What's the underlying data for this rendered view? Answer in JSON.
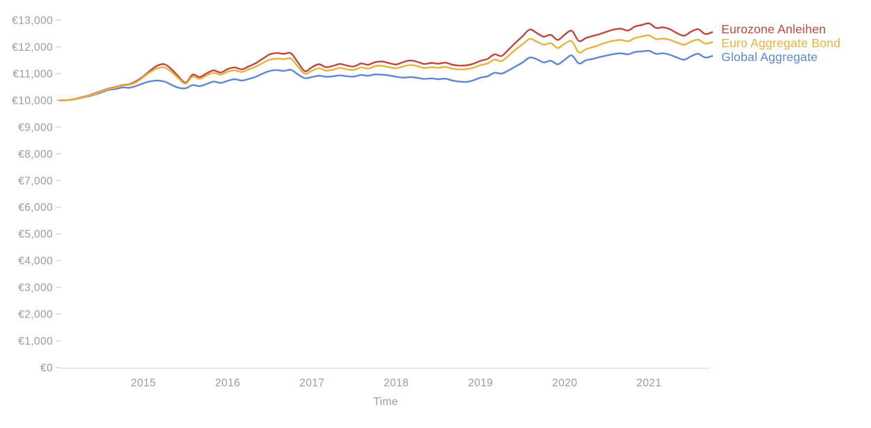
{
  "chart": {
    "background": "#ffffff",
    "axis_text_color": "#9b9b9b",
    "axis_line_color": "#e3e3e3",
    "tick_mark_color": "#d6d6d6"
  },
  "chart_data": {
    "type": "line",
    "title": "",
    "xlabel": "Time",
    "ylabel": "",
    "currency_prefix": "€",
    "ylim": [
      0,
      13000
    ],
    "y_tick_step": 1000,
    "y_tick_labels": [
      "€0",
      "€1,000",
      "€2,000",
      "€3,000",
      "€4,000",
      "€5,000",
      "€6,000",
      "€7,000",
      "€8,000",
      "€9,000",
      "€10,000",
      "€11,000",
      "€12,000",
      "€13,000"
    ],
    "x_tick_labels": [
      "2015",
      "2016",
      "2017",
      "2018",
      "2019",
      "2020",
      "2021"
    ],
    "x_range_months": [
      "2014-01",
      "2021-10"
    ],
    "grid": false,
    "legend_position": "right-of-line-ends",
    "series": [
      {
        "name": "Eurozone Anleihen",
        "color": "#c0463c",
        "values": [
          10000,
          10000,
          10040,
          10100,
          10170,
          10250,
          10340,
          10440,
          10490,
          10570,
          10600,
          10720,
          10900,
          11120,
          11300,
          11350,
          11160,
          10890,
          10660,
          10960,
          10870,
          11010,
          11120,
          11040,
          11170,
          11230,
          11160,
          11270,
          11390,
          11560,
          11720,
          11770,
          11740,
          11760,
          11420,
          11090,
          11240,
          11350,
          11240,
          11290,
          11360,
          11300,
          11270,
          11380,
          11330,
          11430,
          11450,
          11390,
          11340,
          11430,
          11490,
          11440,
          11360,
          11400,
          11370,
          11410,
          11330,
          11300,
          11310,
          11370,
          11480,
          11550,
          11720,
          11660,
          11900,
          12160,
          12400,
          12650,
          12520,
          12380,
          12450,
          12260,
          12460,
          12600,
          12220,
          12330,
          12410,
          12480,
          12570,
          12650,
          12680,
          12610,
          12760,
          12820,
          12880,
          12710,
          12730,
          12660,
          12510,
          12420,
          12570,
          12660,
          12480,
          12550
        ]
      },
      {
        "name": "Euro Aggregate Bond",
        "color": "#e8b33d",
        "values": [
          10000,
          10000,
          10040,
          10090,
          10160,
          10230,
          10320,
          10420,
          10470,
          10550,
          10580,
          10680,
          10870,
          11060,
          11200,
          11230,
          11060,
          10820,
          10620,
          10890,
          10800,
          10930,
          11030,
          10960,
          11070,
          11120,
          11060,
          11160,
          11260,
          11400,
          11520,
          11560,
          11540,
          11560,
          11260,
          10990,
          11110,
          11200,
          11110,
          11150,
          11210,
          11160,
          11140,
          11230,
          11190,
          11280,
          11290,
          11240,
          11200,
          11270,
          11320,
          11280,
          11210,
          11240,
          11220,
          11250,
          11180,
          11160,
          11170,
          11220,
          11320,
          11380,
          11520,
          11470,
          11670,
          11900,
          12100,
          12300,
          12200,
          12080,
          12140,
          11960,
          12120,
          12210,
          11790,
          11910,
          11990,
          12080,
          12170,
          12230,
          12260,
          12210,
          12330,
          12390,
          12430,
          12290,
          12310,
          12260,
          12160,
          12080,
          12200,
          12270,
          12120,
          12180
        ]
      },
      {
        "name": "Global Aggregate",
        "color": "#5b87d5",
        "values": [
          10000,
          10000,
          10030,
          10080,
          10140,
          10210,
          10290,
          10390,
          10420,
          10480,
          10470,
          10540,
          10640,
          10710,
          10740,
          10700,
          10580,
          10470,
          10450,
          10570,
          10530,
          10610,
          10700,
          10650,
          10730,
          10790,
          10740,
          10800,
          10880,
          11000,
          11100,
          11130,
          11100,
          11140,
          10970,
          10830,
          10870,
          10920,
          10880,
          10900,
          10930,
          10900,
          10890,
          10950,
          10920,
          10970,
          10960,
          10930,
          10880,
          10850,
          10870,
          10840,
          10800,
          10820,
          10790,
          10810,
          10740,
          10700,
          10690,
          10750,
          10850,
          10900,
          11030,
          11000,
          11120,
          11270,
          11420,
          11600,
          11540,
          11420,
          11480,
          11350,
          11520,
          11680,
          11380,
          11500,
          11550,
          11620,
          11680,
          11730,
          11760,
          11720,
          11810,
          11830,
          11850,
          11740,
          11760,
          11700,
          11600,
          11520,
          11650,
          11740,
          11600,
          11660
        ]
      }
    ]
  }
}
